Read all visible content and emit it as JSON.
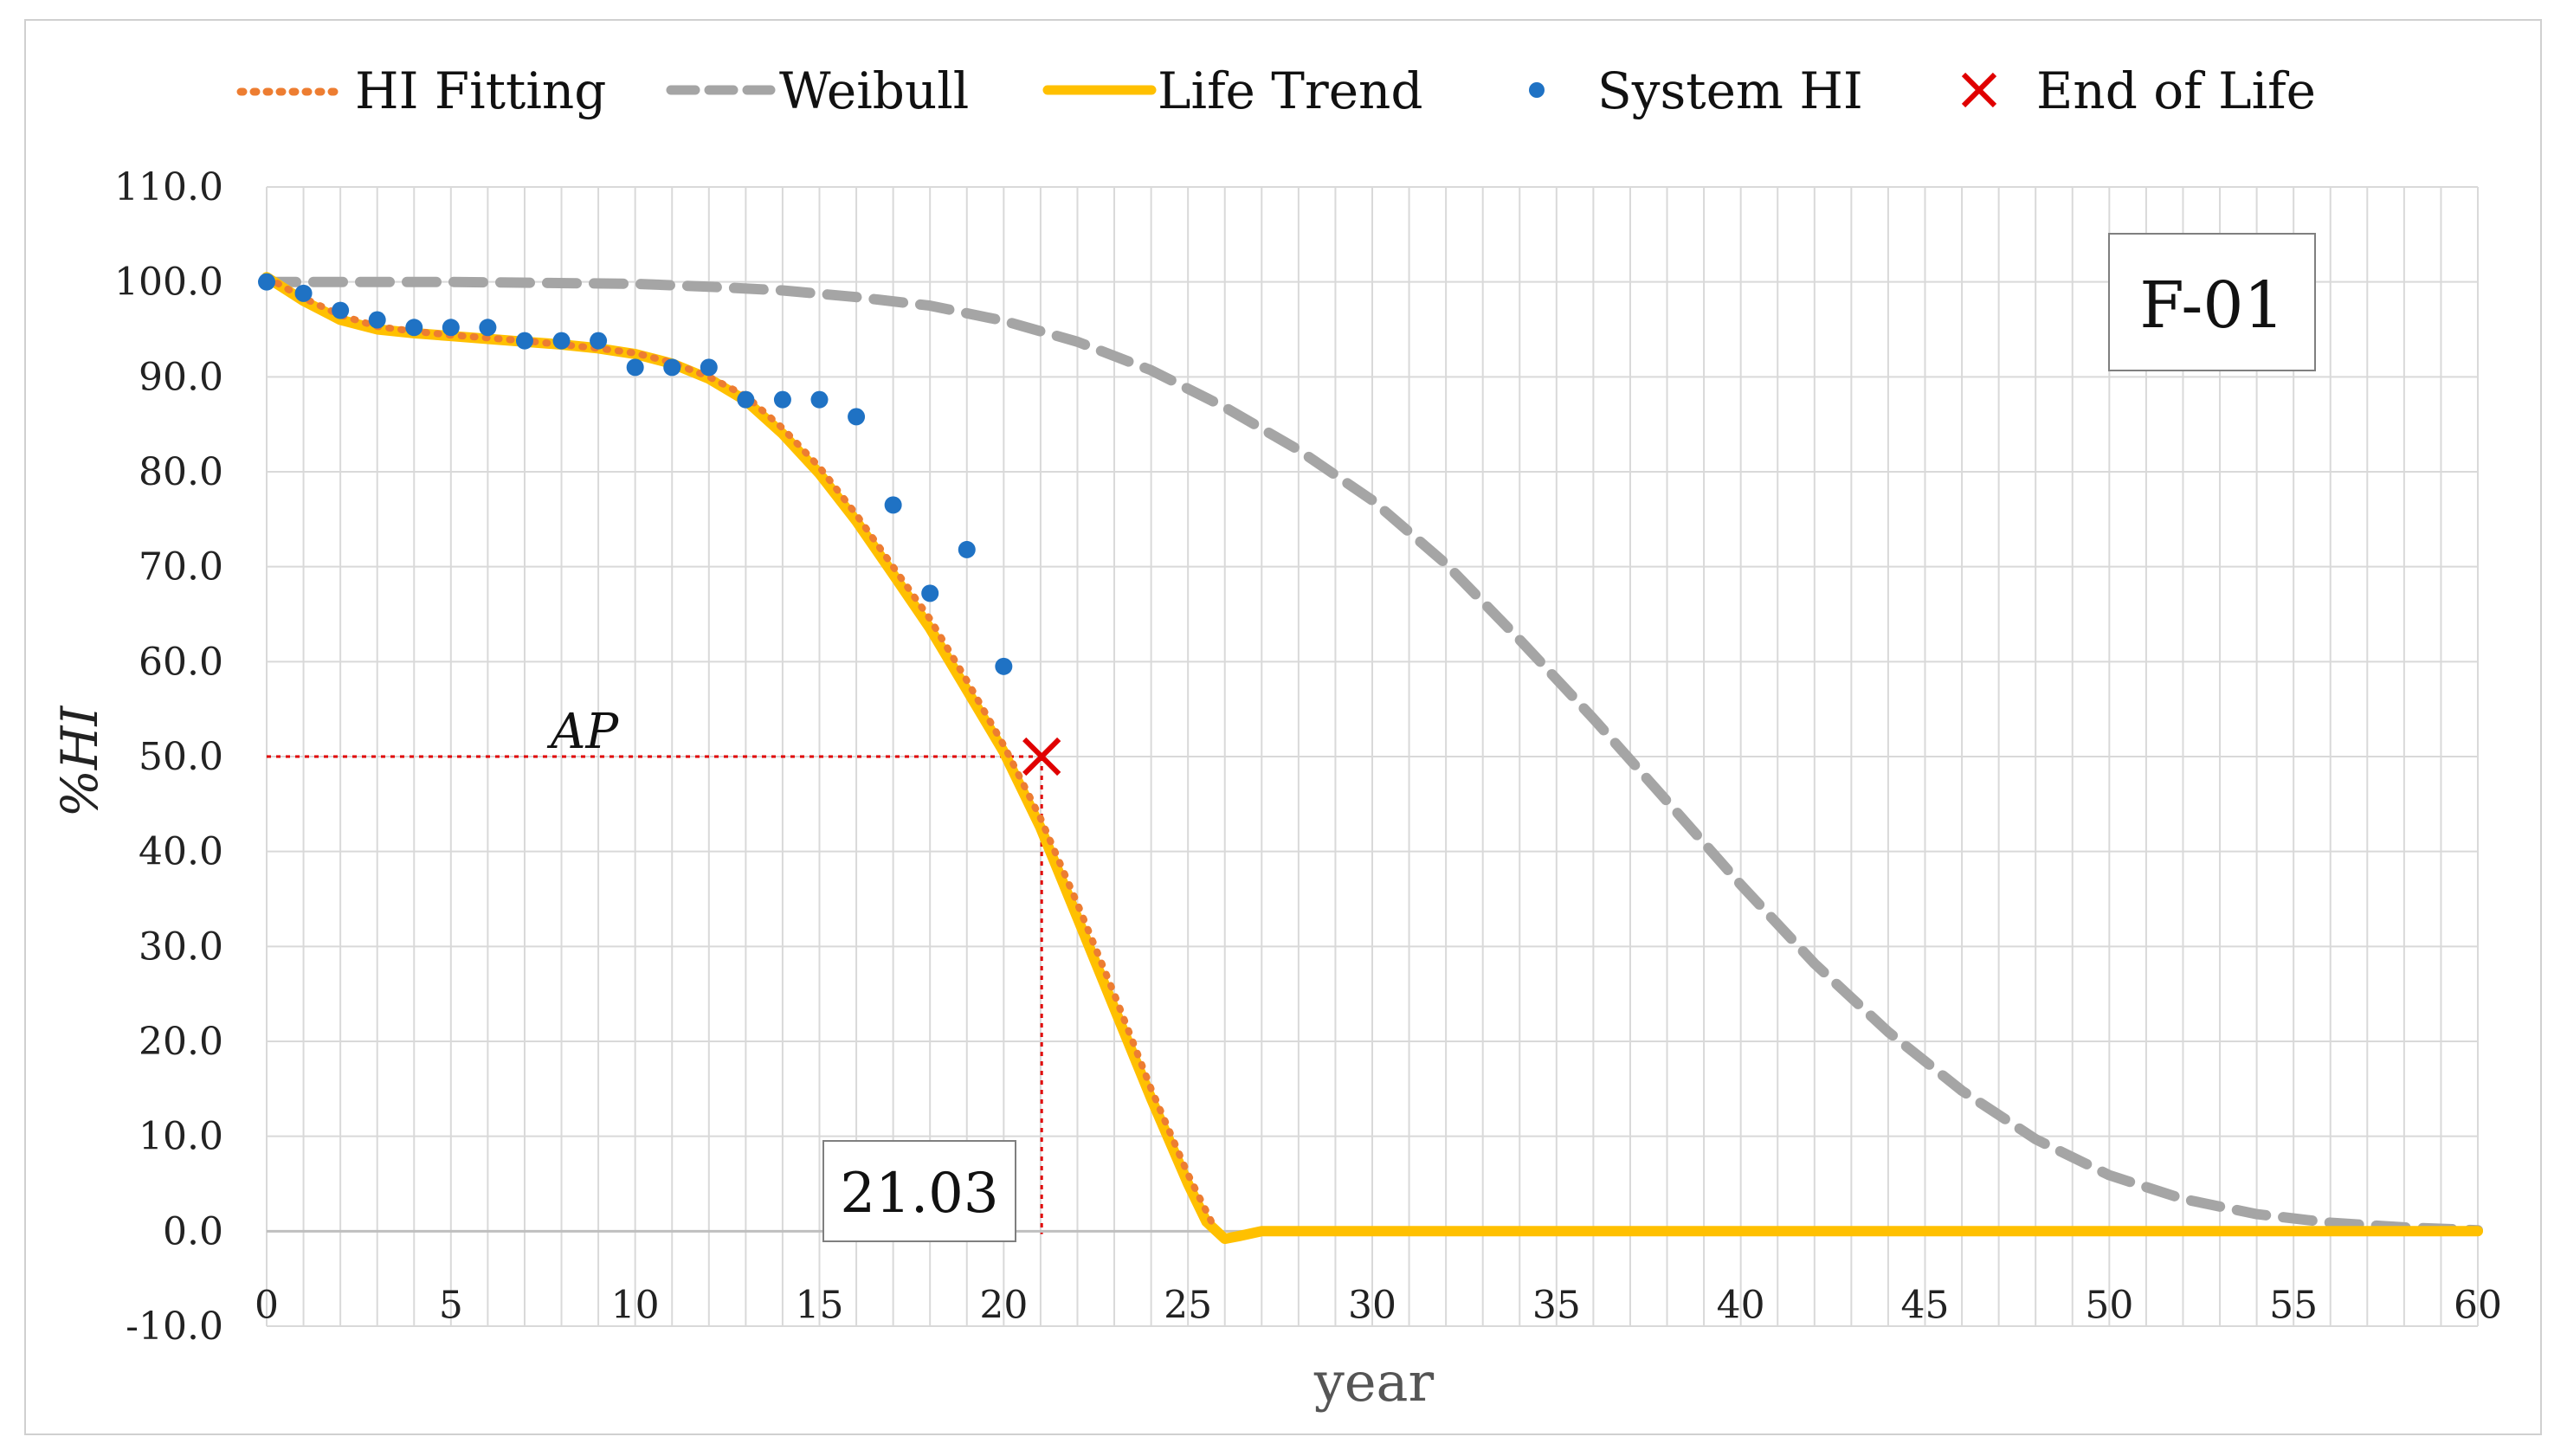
{
  "chart_data": {
    "type": "line",
    "title": "",
    "xlabel": "year",
    "ylabel": "%HI",
    "xlim": [
      0,
      60
    ],
    "ylim": [
      -10,
      110
    ],
    "x_ticks": [
      0,
      5,
      10,
      15,
      20,
      25,
      30,
      35,
      40,
      45,
      50,
      55,
      60
    ],
    "y_ticks": [
      "-10.0",
      "0.0",
      "10.0",
      "20.0",
      "30.0",
      "40.0",
      "50.0",
      "60.0",
      "70.0",
      "80.0",
      "90.0",
      "100.0",
      "110.0"
    ],
    "grid": true,
    "legend_position": "top",
    "legend": [
      "HI Fitting",
      "Weibull",
      "Life Trend",
      "System HI",
      "End of Life"
    ],
    "series": [
      {
        "name": "HI Fitting",
        "style": "dotted",
        "color": "#ED7D31",
        "x": [
          0,
          1,
          2,
          3,
          4,
          5,
          6,
          7,
          8,
          9,
          10,
          11,
          12,
          13,
          14,
          15,
          16,
          17,
          18,
          19,
          20,
          21,
          22,
          23,
          24,
          25,
          25.7
        ],
        "y": [
          100.5,
          98.3,
          96.5,
          95.3,
          94.8,
          94.4,
          94.1,
          93.8,
          93.4,
          93.0,
          92.5,
          91.5,
          90.0,
          88.0,
          84.6,
          80.5,
          75.5,
          70.0,
          64.5,
          58.0,
          51.2,
          43.5,
          34.5,
          25.0,
          15.0,
          6.0,
          0.5
        ]
      },
      {
        "name": "Weibull",
        "style": "dashed",
        "color": "#A5A5A5",
        "x": [
          0,
          5,
          10,
          12,
          14,
          16,
          18,
          20,
          22,
          24,
          26,
          28,
          30,
          32,
          34,
          36,
          38,
          40,
          42,
          44,
          46,
          48,
          50,
          52,
          54,
          56,
          58,
          60
        ],
        "y": [
          100,
          100,
          99.8,
          99.5,
          99.1,
          98.4,
          97.5,
          95.9,
          93.7,
          90.7,
          86.8,
          82.3,
          77.0,
          70.3,
          62.3,
          54.0,
          45.3,
          36.5,
          28.2,
          21.0,
          14.8,
          9.7,
          5.9,
          3.4,
          1.8,
          0.9,
          0.4,
          0.1
        ]
      },
      {
        "name": "Life Trend",
        "style": "solid",
        "color": "#FFC000",
        "x": [
          0,
          1,
          2,
          3,
          4,
          5,
          6,
          7,
          8,
          9,
          10,
          11,
          12,
          13,
          14,
          15,
          16,
          17,
          18,
          19,
          20,
          21,
          22,
          23,
          24,
          25,
          25.5,
          26,
          26.4,
          27,
          30,
          40,
          50,
          60
        ],
        "y": [
          100.5,
          98.0,
          96.0,
          95.0,
          94.6,
          94.3,
          94.0,
          93.7,
          93.4,
          93.0,
          92.4,
          91.4,
          89.8,
          87.5,
          84.0,
          79.8,
          74.8,
          69.2,
          63.5,
          57.0,
          50.5,
          42.5,
          33.0,
          23.5,
          14.0,
          5.0,
          1.0,
          -0.8,
          -0.5,
          0,
          0,
          0,
          0,
          0
        ]
      },
      {
        "name": "System HI",
        "style": "markers",
        "color": "#1F72C4",
        "x": [
          0,
          1,
          2,
          3,
          4,
          5,
          6,
          7,
          8,
          9,
          10,
          11,
          12,
          13,
          14,
          15,
          16,
          17,
          18,
          19,
          20
        ],
        "y": [
          100,
          98.8,
          97,
          96,
          95.2,
          95.2,
          95.2,
          93.8,
          93.8,
          93.8,
          91,
          91,
          91,
          87.6,
          87.6,
          87.6,
          85.8,
          76.5,
          67.2,
          71.8,
          59.5
        ]
      },
      {
        "name": "End of Life",
        "style": "x-marker",
        "color": "#E00000",
        "x": [
          21.03
        ],
        "y": [
          50
        ]
      }
    ],
    "annotations": {
      "ap_label": "AP",
      "eol_threshold": 50,
      "eol_year": 21.03,
      "eol_year_label": "21.03",
      "box_label": "F-01"
    }
  }
}
